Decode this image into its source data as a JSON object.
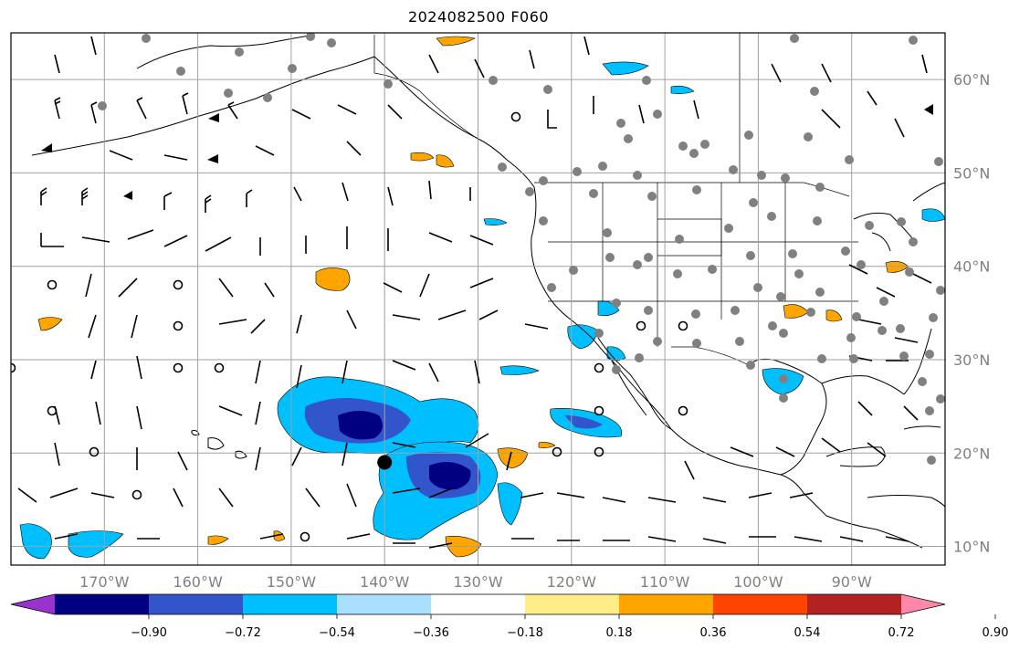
{
  "title": "2024082500 F060",
  "map": {
    "lon_range": [
      -180,
      -80
    ],
    "lat_range": [
      8,
      65
    ],
    "gridlines": true,
    "gridline_color": "#a0a0a0",
    "lon_gridlines": [
      -170,
      -160,
      -150,
      -140,
      -130,
      -120,
      -110,
      -100,
      -90
    ],
    "lat_gridlines": [
      10,
      20,
      30,
      40,
      50,
      60
    ],
    "lon_labels": [
      "170°W",
      "160°W",
      "150°W",
      "140°W",
      "130°W",
      "120°W",
      "110°W",
      "100°W",
      "90°W"
    ],
    "lat_labels": [
      "10°N",
      "20°N",
      "30°N",
      "40°N",
      "50°N",
      "60°N"
    ],
    "label_color": "#808080"
  },
  "colorbar": {
    "extend": "both",
    "ticks": [
      "−0.90",
      "−0.72",
      "−0.54",
      "−0.36",
      "−0.18",
      "0.18",
      "0.36",
      "0.54",
      "0.72",
      "0.90"
    ],
    "colors": [
      "#9933cc",
      "#000080",
      "#3355cc",
      "#00bfff",
      "#aadfff",
      "#ffffff",
      "#ffee88",
      "#ffa500",
      "#ff4400",
      "#b22222",
      "#ff88aa"
    ]
  },
  "marker": {
    "lon": -140,
    "lat": 19,
    "label": ""
  }
}
